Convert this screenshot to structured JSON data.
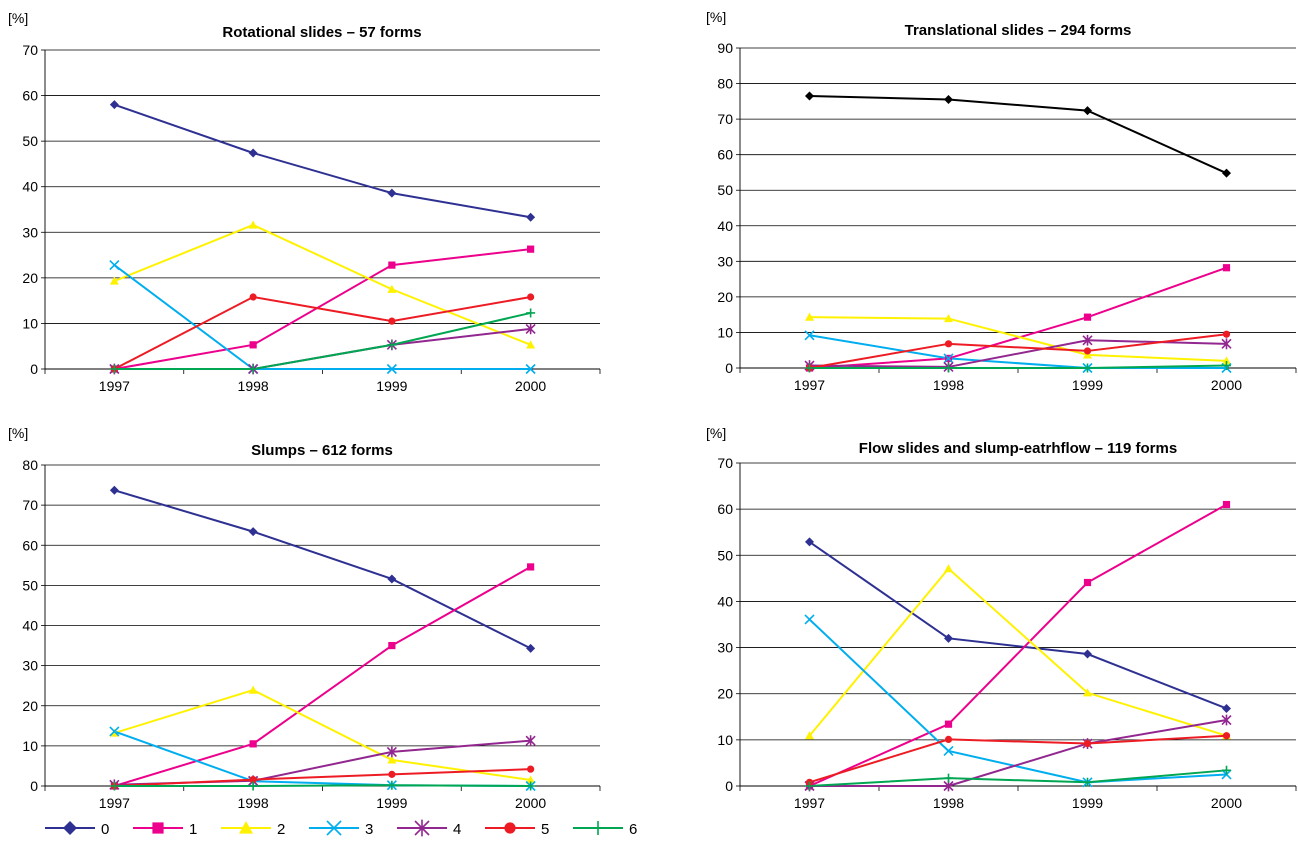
{
  "legend": {
    "placement": "bottom-left",
    "entries": [
      {
        "label": "0",
        "color": "#2e3192",
        "marker": "diamond"
      },
      {
        "label": "1",
        "color": "#ec008c",
        "marker": "square"
      },
      {
        "label": "2",
        "color": "#fff200",
        "marker": "triangle"
      },
      {
        "label": "3",
        "color": "#00aeef",
        "marker": "x"
      },
      {
        "label": "4",
        "color": "#92278f",
        "marker": "asterisk"
      },
      {
        "label": "5",
        "color": "#ed1c24",
        "marker": "circle"
      },
      {
        "label": "6",
        "color": "#00a651",
        "marker": "plus"
      }
    ]
  },
  "chart_data": [
    {
      "type": "line",
      "title": "Rotational slides – 57 forms",
      "ylabel": "[%]",
      "xlabel": "",
      "categories": [
        "1997",
        "1998",
        "1999",
        "2000"
      ],
      "ylim": [
        0,
        70
      ],
      "yticks": [
        0,
        10,
        20,
        30,
        40,
        50,
        60,
        70
      ],
      "grid": "horizontal",
      "series": [
        {
          "name": "0",
          "values": [
            58,
            47.4,
            38.6,
            33.3
          ]
        },
        {
          "name": "1",
          "values": [
            0,
            5.3,
            22.8,
            26.3
          ]
        },
        {
          "name": "2",
          "values": [
            19.3,
            31.6,
            17.5,
            5.3
          ]
        },
        {
          "name": "3",
          "values": [
            22.8,
            0,
            0,
            0
          ]
        },
        {
          "name": "4",
          "values": [
            0,
            0,
            5.3,
            8.8
          ]
        },
        {
          "name": "5",
          "values": [
            0,
            15.8,
            10.5,
            15.8
          ]
        },
        {
          "name": "6",
          "values": [
            0,
            0,
            5.3,
            12.3
          ]
        }
      ]
    },
    {
      "type": "line",
      "title": "Translational slides – 294 forms",
      "ylabel": "[%]",
      "xlabel": "",
      "categories": [
        "1997",
        "1998",
        "1999",
        "2000"
      ],
      "ylim": [
        0,
        90
      ],
      "yticks": [
        0,
        10,
        20,
        30,
        40,
        50,
        60,
        70,
        80,
        90
      ],
      "grid": "horizontal",
      "series": [
        {
          "name": "0",
          "values": [
            76.5,
            75.5,
            72.4,
            54.8
          ],
          "color": "#000000"
        },
        {
          "name": "1",
          "values": [
            0,
            2.7,
            14.3,
            28.2
          ]
        },
        {
          "name": "2",
          "values": [
            14.3,
            13.9,
            3.7,
            2
          ]
        },
        {
          "name": "3",
          "values": [
            9.2,
            2.7,
            0,
            0
          ]
        },
        {
          "name": "4",
          "values": [
            0.7,
            0.3,
            7.8,
            6.8
          ]
        },
        {
          "name": "5",
          "values": [
            0,
            6.8,
            4.8,
            9.5
          ]
        },
        {
          "name": "6",
          "values": [
            0,
            0,
            0,
            0.7
          ]
        }
      ]
    },
    {
      "type": "line",
      "title": "Slumps – 612 forms",
      "ylabel": "[%]",
      "xlabel": "",
      "categories": [
        "1997",
        "1998",
        "1999",
        "2000"
      ],
      "ylim": [
        0,
        80
      ],
      "yticks": [
        0,
        10,
        20,
        30,
        40,
        50,
        60,
        70,
        80
      ],
      "grid": "horizontal",
      "series": [
        {
          "name": "0",
          "values": [
            73.7,
            63.4,
            51.6,
            34.3
          ]
        },
        {
          "name": "1",
          "values": [
            0,
            10.5,
            35,
            54.6
          ]
        },
        {
          "name": "2",
          "values": [
            13.2,
            23.9,
            6.5,
            1.5
          ]
        },
        {
          "name": "3",
          "values": [
            13.6,
            1.2,
            0.2,
            0
          ]
        },
        {
          "name": "4",
          "values": [
            0.3,
            1.3,
            8.5,
            11.3
          ]
        },
        {
          "name": "5",
          "values": [
            0,
            1.6,
            2.9,
            4.2
          ]
        },
        {
          "name": "6",
          "values": [
            0,
            0,
            0.2,
            0
          ]
        }
      ]
    },
    {
      "type": "line",
      "title": "Flow slides and slump-eatrhflow – 119 forms",
      "ylabel": "[%]",
      "xlabel": "",
      "categories": [
        "1997",
        "1998",
        "1999",
        "2000"
      ],
      "ylim": [
        0,
        70
      ],
      "yticks": [
        0,
        10,
        20,
        30,
        40,
        50,
        60,
        70
      ],
      "grid": "horizontal",
      "series": [
        {
          "name": "0",
          "values": [
            52.9,
            32,
            28.6,
            16.8
          ]
        },
        {
          "name": "1",
          "values": [
            0,
            13.4,
            44.1,
            61
          ]
        },
        {
          "name": "2",
          "values": [
            10.9,
            47.1,
            20.2,
            10.9
          ]
        },
        {
          "name": "3",
          "values": [
            36.1,
            7.6,
            0.8,
            2.5
          ]
        },
        {
          "name": "4",
          "values": [
            0,
            0,
            9.2,
            14.3
          ]
        },
        {
          "name": "5",
          "values": [
            0.8,
            10.1,
            9.2,
            10.9
          ]
        },
        {
          "name": "6",
          "values": [
            0,
            1.7,
            0.8,
            3.4
          ]
        }
      ]
    }
  ]
}
